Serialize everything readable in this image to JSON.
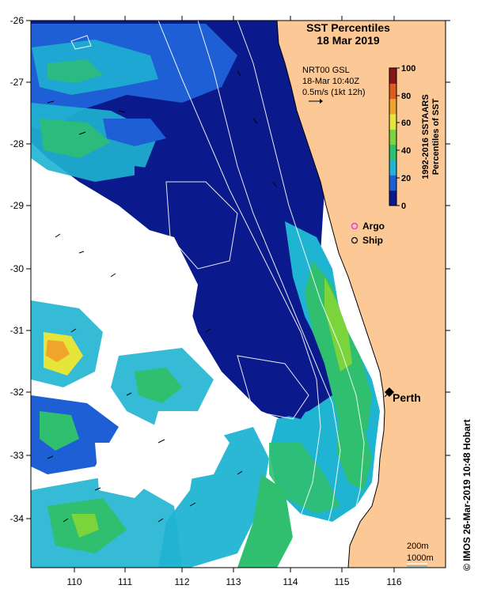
{
  "title": {
    "line1": "SST Percentiles",
    "line2": "18 Mar 2019"
  },
  "currents_info": {
    "line1": "NRT00 GSL",
    "line2": "18-Mar 10:40Z",
    "line3": "0.5m/s (1kt 12h)"
  },
  "colorbar": {
    "ticks": [
      "100",
      "80",
      "60",
      "40",
      "20",
      "0"
    ],
    "label_line1": "1992-2016 SSTAARS",
    "label_line2": "Percentiles of SST",
    "colors": [
      "#0a1a8c",
      "#1f5fd6",
      "#1fb4d2",
      "#2fbf6f",
      "#7cd43c",
      "#e6e63a",
      "#f0a52a",
      "#e05a1c",
      "#8c1414"
    ]
  },
  "legend": {
    "argo": "Argo",
    "ship": "Ship"
  },
  "place": {
    "city": "Perth"
  },
  "axes": {
    "x_ticks": [
      "110",
      "111",
      "112",
      "113",
      "114",
      "115",
      "116"
    ],
    "y_ticks": [
      "-26",
      "-27",
      "-28",
      "-29",
      "-30",
      "-31",
      "-32",
      "-33",
      "-34"
    ]
  },
  "depth_legend": {
    "line1": "200m",
    "line2": "1000m"
  },
  "credit": "© IMOS 26-Mar-2019 10:48 Hobart",
  "colors": {
    "land": "#fbc896",
    "deep_blue": "#0a1a8c",
    "mid_blue": "#1f5fd6",
    "cyan": "#1fb4d2",
    "green": "#2fbf6f",
    "argo": "#e040e0"
  }
}
